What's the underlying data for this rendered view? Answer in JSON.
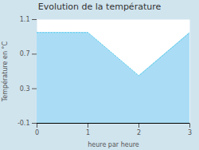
{
  "chart_data": {
    "type": "area",
    "title": "Evolution de la température",
    "xlabel": "heure par heure",
    "ylabel": "Température en °C",
    "x": [
      0,
      1,
      2,
      3
    ],
    "values": [
      0.95,
      0.95,
      0.45,
      0.95
    ],
    "color": "#aaddf5",
    "line_style": "dotted",
    "xlim": [
      0,
      3
    ],
    "ylim": [
      -0.1,
      1.1
    ],
    "xticks": [
      0,
      1,
      2,
      3
    ],
    "yticks": [
      -0.1,
      0.3,
      0.7,
      1.1
    ],
    "grid": false
  }
}
